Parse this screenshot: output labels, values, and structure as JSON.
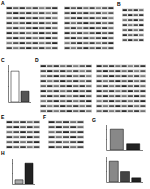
{
  "panels": [
    {
      "label": "A"
    },
    {
      "label": "B"
    },
    {
      "label": "C"
    },
    {
      "label": "D"
    },
    {
      "label": "E"
    },
    {
      "label": "F"
    },
    {
      "label": "G"
    },
    {
      "label": "H"
    }
  ],
  "chart_data": [
    {
      "type": "bar",
      "categories": [
        null,
        null
      ],
      "values": [
        1.0,
        0.35
      ],
      "colors": [
        "#ffffff",
        "#555555"
      ],
      "ylim": [
        0,
        1.2
      ],
      "yticks": [
        0,
        0.5,
        1
      ],
      "tick_labels": false
    },
    {
      "type": "bar",
      "categories": [
        null,
        null
      ],
      "values": [
        1.0,
        0.3
      ],
      "colors": [
        "#888888",
        "#222222"
      ],
      "ylim": [
        0,
        1.2
      ],
      "yticks": [
        0,
        0.5,
        1
      ],
      "tick_labels": false
    },
    {
      "type": "bar",
      "categories": [
        null,
        null,
        null
      ],
      "values": [
        1.0,
        0.5,
        0.2
      ],
      "colors": [
        "#888888",
        "#444444",
        "#222222"
      ],
      "ylim": [
        0,
        1.2
      ],
      "yticks": [
        0,
        0.5,
        1
      ],
      "tick_labels": false
    },
    {
      "type": "bar",
      "categories": [
        null,
        null
      ],
      "values": [
        0.2,
        1.0
      ],
      "colors": [
        "#aaaaaa",
        "#222222"
      ],
      "ylim": [
        0,
        1.2
      ],
      "yticks": [
        0,
        0.5,
        1
      ],
      "tick_labels": false
    }
  ]
}
